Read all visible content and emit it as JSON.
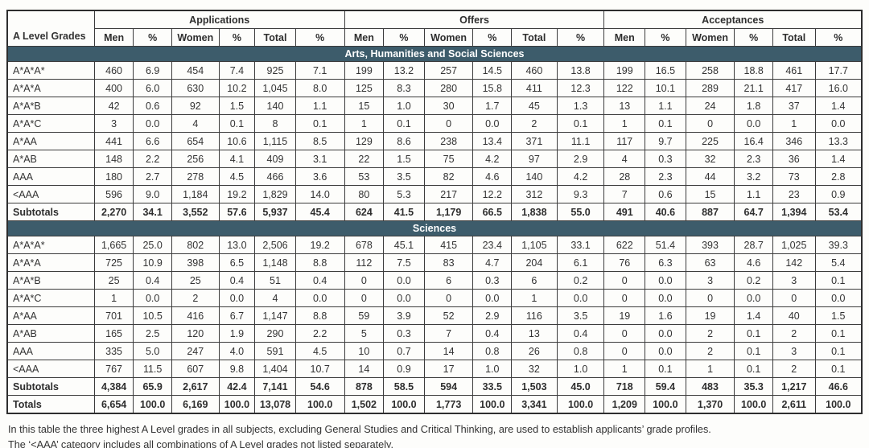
{
  "colors": {
    "banner": "#3d5c6b",
    "banner_text": "#ffffff",
    "border": "#3c3c3c",
    "text": "#333333"
  },
  "table": {
    "grade_col_header": "A Level Grades",
    "group_headers": [
      "Applications",
      "Offers",
      "Acceptances"
    ],
    "sub_headers": [
      "Men",
      "%",
      "Women",
      "%",
      "Total",
      "%"
    ],
    "sections": [
      {
        "title": "Arts, Humanities and Social Sciences",
        "rows": [
          {
            "grade": "A*A*A*",
            "values": [
              "460",
              "6.9",
              "454",
              "7.4",
              "925",
              "7.1",
              "199",
              "13.2",
              "257",
              "14.5",
              "460",
              "13.8",
              "199",
              "16.5",
              "258",
              "18.8",
              "461",
              "17.7"
            ]
          },
          {
            "grade": "A*A*A",
            "values": [
              "400",
              "6.0",
              "630",
              "10.2",
              "1,045",
              "8.0",
              "125",
              "8.3",
              "280",
              "15.8",
              "411",
              "12.3",
              "122",
              "10.1",
              "289",
              "21.1",
              "417",
              "16.0"
            ]
          },
          {
            "grade": "A*A*B",
            "values": [
              "42",
              "0.6",
              "92",
              "1.5",
              "140",
              "1.1",
              "15",
              "1.0",
              "30",
              "1.7",
              "45",
              "1.3",
              "13",
              "1.1",
              "24",
              "1.8",
              "37",
              "1.4"
            ]
          },
          {
            "grade": "A*A*C",
            "values": [
              "3",
              "0.0",
              "4",
              "0.1",
              "8",
              "0.1",
              "1",
              "0.1",
              "0",
              "0.0",
              "2",
              "0.1",
              "1",
              "0.1",
              "0",
              "0.0",
              "1",
              "0.0"
            ]
          },
          {
            "grade": "A*AA",
            "values": [
              "441",
              "6.6",
              "654",
              "10.6",
              "1,115",
              "8.5",
              "129",
              "8.6",
              "238",
              "13.4",
              "371",
              "11.1",
              "117",
              "9.7",
              "225",
              "16.4",
              "346",
              "13.3"
            ]
          },
          {
            "grade": "A*AB",
            "values": [
              "148",
              "2.2",
              "256",
              "4.1",
              "409",
              "3.1",
              "22",
              "1.5",
              "75",
              "4.2",
              "97",
              "2.9",
              "4",
              "0.3",
              "32",
              "2.3",
              "36",
              "1.4"
            ]
          },
          {
            "grade": "AAA",
            "values": [
              "180",
              "2.7",
              "278",
              "4.5",
              "466",
              "3.6",
              "53",
              "3.5",
              "82",
              "4.6",
              "140",
              "4.2",
              "28",
              "2.3",
              "44",
              "3.2",
              "73",
              "2.8"
            ]
          },
          {
            "grade": "<AAA",
            "values": [
              "596",
              "9.0",
              "1,184",
              "19.2",
              "1,829",
              "14.0",
              "80",
              "5.3",
              "217",
              "12.2",
              "312",
              "9.3",
              "7",
              "0.6",
              "15",
              "1.1",
              "23",
              "0.9"
            ]
          }
        ],
        "subtotals": {
          "grade": "Subtotals",
          "values": [
            "2,270",
            "34.1",
            "3,552",
            "57.6",
            "5,937",
            "45.4",
            "624",
            "41.5",
            "1,179",
            "66.5",
            "1,838",
            "55.0",
            "491",
            "40.6",
            "887",
            "64.7",
            "1,394",
            "53.4"
          ]
        }
      },
      {
        "title": "Sciences",
        "rows": [
          {
            "grade": "A*A*A*",
            "values": [
              "1,665",
              "25.0",
              "802",
              "13.0",
              "2,506",
              "19.2",
              "678",
              "45.1",
              "415",
              "23.4",
              "1,105",
              "33.1",
              "622",
              "51.4",
              "393",
              "28.7",
              "1,025",
              "39.3"
            ]
          },
          {
            "grade": "A*A*A",
            "values": [
              "725",
              "10.9",
              "398",
              "6.5",
              "1,148",
              "8.8",
              "112",
              "7.5",
              "83",
              "4.7",
              "204",
              "6.1",
              "76",
              "6.3",
              "63",
              "4.6",
              "142",
              "5.4"
            ]
          },
          {
            "grade": "A*A*B",
            "values": [
              "25",
              "0.4",
              "25",
              "0.4",
              "51",
              "0.4",
              "0",
              "0.0",
              "6",
              "0.3",
              "6",
              "0.2",
              "0",
              "0.0",
              "3",
              "0.2",
              "3",
              "0.1"
            ]
          },
          {
            "grade": "A*A*C",
            "values": [
              "1",
              "0.0",
              "2",
              "0.0",
              "4",
              "0.0",
              "0",
              "0.0",
              "0",
              "0.0",
              "1",
              "0.0",
              "0",
              "0.0",
              "0",
              "0.0",
              "0",
              "0.0"
            ]
          },
          {
            "grade": "A*AA",
            "values": [
              "701",
              "10.5",
              "416",
              "6.7",
              "1,147",
              "8.8",
              "59",
              "3.9",
              "52",
              "2.9",
              "116",
              "3.5",
              "19",
              "1.6",
              "19",
              "1.4",
              "40",
              "1.5"
            ]
          },
          {
            "grade": "A*AB",
            "values": [
              "165",
              "2.5",
              "120",
              "1.9",
              "290",
              "2.2",
              "5",
              "0.3",
              "7",
              "0.4",
              "13",
              "0.4",
              "0",
              "0.0",
              "2",
              "0.1",
              "2",
              "0.1"
            ]
          },
          {
            "grade": "AAA",
            "values": [
              "335",
              "5.0",
              "247",
              "4.0",
              "591",
              "4.5",
              "10",
              "0.7",
              "14",
              "0.8",
              "26",
              "0.8",
              "0",
              "0.0",
              "2",
              "0.1",
              "3",
              "0.1"
            ]
          },
          {
            "grade": "<AAA",
            "values": [
              "767",
              "11.5",
              "607",
              "9.8",
              "1,404",
              "10.7",
              "14",
              "0.9",
              "17",
              "1.0",
              "32",
              "1.0",
              "1",
              "0.1",
              "1",
              "0.1",
              "2",
              "0.1"
            ]
          }
        ],
        "subtotals": {
          "grade": "Subtotals",
          "values": [
            "4,384",
            "65.9",
            "2,617",
            "42.4",
            "7,141",
            "54.6",
            "878",
            "58.5",
            "594",
            "33.5",
            "1,503",
            "45.0",
            "718",
            "59.4",
            "483",
            "35.3",
            "1,217",
            "46.6"
          ]
        }
      }
    ],
    "totals": {
      "grade": "Totals",
      "values": [
        "6,654",
        "100.0",
        "6,169",
        "100.0",
        "13,078",
        "100.0",
        "1,502",
        "100.0",
        "1,773",
        "100.0",
        "3,341",
        "100.0",
        "1,209",
        "100.0",
        "1,370",
        "100.0",
        "2,611",
        "100.0"
      ]
    }
  },
  "footnotes": [
    "In this table the three highest A Level grades in all subjects, excluding General Studies and Critical Thinking, are used to establish applicants’ grade profiles.",
    "The ‘<AAA’ category includes all combinations of A Level grades not listed separately."
  ]
}
